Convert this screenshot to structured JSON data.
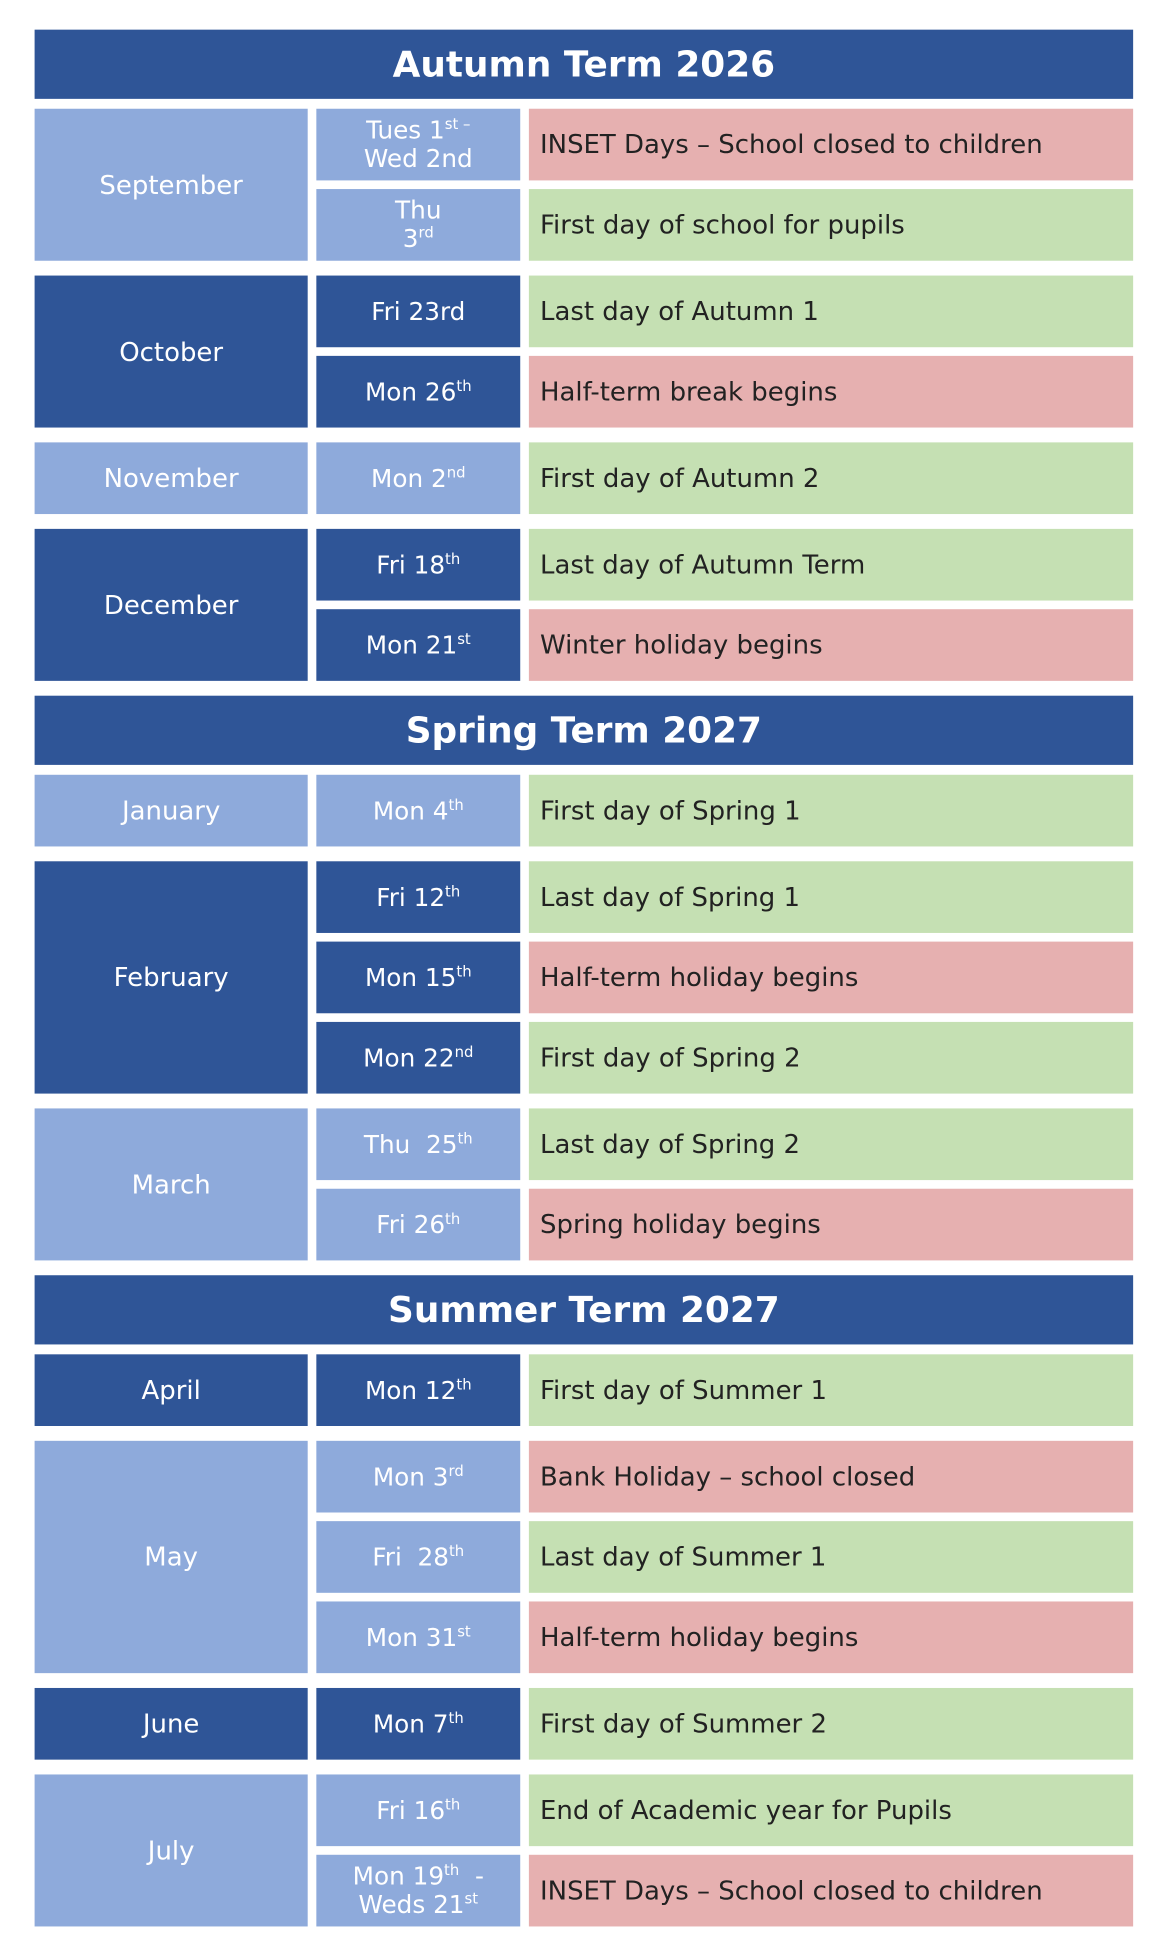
{
  "terms": [
    {
      "title": "Autumn Term 2026",
      "months": [
        {
          "name": "September",
          "color": "#8eaadb",
          "events": [
            {
              "date": [
                [
                  "Tues 1",
                  "st –"
                ],
                [
                  "Wed 2nd"
                ]
              ],
              "color": "#8eaadb",
              "text": "INSET Days – School closed to children",
              "fill": "#e6b0b0"
            },
            {
              "date": [
                [
                  "Thu"
                ],
                [
                  "3",
                  "rd"
                ]
              ],
              "color": "#8eaadb",
              "text": "First day of school for pupils",
              "fill": "#c5e0b3"
            }
          ]
        },
        {
          "name": "October",
          "color": "#2f5597",
          "events": [
            {
              "date": [
                [
                  "Fri 23rd"
                ]
              ],
              "color": "#2f5597",
              "text": "Last day of Autumn 1",
              "fill": "#c5e0b3"
            },
            {
              "date": [
                [
                  "Mon 26",
                  "th"
                ]
              ],
              "color": "#2f5597",
              "text": "Half-term break begins",
              "fill": "#e6b0b0"
            }
          ]
        },
        {
          "name": "November",
          "color": "#8eaadb",
          "events": [
            {
              "date": [
                [
                  "Mon 2",
                  "nd"
                ]
              ],
              "color": "#8eaadb",
              "text": "First day of Autumn 2",
              "fill": "#c5e0b3"
            }
          ]
        },
        {
          "name": "December",
          "color": "#2f5597",
          "events": [
            {
              "date": [
                [
                  "Fri 18",
                  "th"
                ]
              ],
              "color": "#2f5597",
              "text": "Last day of Autumn Term",
              "fill": "#c5e0b3"
            },
            {
              "date": [
                [
                  "Mon 21",
                  "st"
                ]
              ],
              "color": "#2f5597",
              "text": "Winter holiday begins",
              "fill": "#e6b0b0"
            }
          ]
        }
      ]
    },
    {
      "title": "Spring Term 2027",
      "months": [
        {
          "name": "January",
          "color": "#8eaadb",
          "events": [
            {
              "date": [
                [
                  "Mon 4",
                  "th"
                ]
              ],
              "color": "#8eaadb",
              "text": "First day of Spring 1",
              "fill": "#c5e0b3"
            }
          ]
        },
        {
          "name": "February",
          "color": "#2f5597",
          "events": [
            {
              "date": [
                [
                  "Fri 12",
                  "th"
                ]
              ],
              "color": "#2f5597",
              "text": "Last day of Spring 1",
              "fill": "#c5e0b3"
            },
            {
              "date": [
                [
                  "Mon 15",
                  "th"
                ]
              ],
              "color": "#2f5597",
              "text": "Half-term holiday begins",
              "fill": "#e6b0b0"
            },
            {
              "date": [
                [
                  "Mon 22",
                  "nd"
                ]
              ],
              "color": "#2f5597",
              "text": "First day of Spring 2",
              "fill": "#c5e0b3"
            }
          ]
        },
        {
          "name": "March",
          "color": "#8eaadb",
          "events": [
            {
              "date": [
                [
                  "Thu  25",
                  "th"
                ]
              ],
              "color": "#8eaadb",
              "text": "Last day of Spring 2",
              "fill": "#c5e0b3"
            },
            {
              "date": [
                [
                  "Fri 26",
                  "th"
                ]
              ],
              "color": "#8eaadb",
              "text": "Spring holiday begins",
              "fill": "#e6b0b0"
            }
          ]
        }
      ]
    },
    {
      "title": "Summer Term 2027",
      "months": [
        {
          "name": "April",
          "color": "#2f5597",
          "events": [
            {
              "date": [
                [
                  "Mon 12",
                  "th"
                ]
              ],
              "color": "#2f5597",
              "text": "First day of Summer 1",
              "fill": "#c5e0b3"
            }
          ]
        },
        {
          "name": "May",
          "color": "#8eaadb",
          "events": [
            {
              "date": [
                [
                  "Mon 3",
                  "rd"
                ]
              ],
              "color": "#8eaadb",
              "text": "Bank Holiday – school closed",
              "fill": "#e6b0b0"
            },
            {
              "date": [
                [
                  "Fri  28",
                  "th"
                ]
              ],
              "color": "#8eaadb",
              "text": "Last day of Summer 1",
              "fill": "#c5e0b3"
            },
            {
              "date": [
                [
                  "Mon 31",
                  "st"
                ]
              ],
              "color": "#8eaadb",
              "text": "Half-term holiday begins",
              "fill": "#e6b0b0"
            }
          ]
        },
        {
          "name": "June",
          "color": "#2f5597",
          "events": [
            {
              "date": [
                [
                  "Mon 7",
                  "th"
                ]
              ],
              "color": "#2f5597",
              "text": "First day of Summer 2",
              "fill": "#c5e0b3"
            }
          ]
        },
        {
          "name": "July",
          "color": "#8eaadb",
          "events": [
            {
              "date": [
                [
                  "Fri 16",
                  "th"
                ]
              ],
              "color": "#8eaadb",
              "text": "End of Academic year for Pupils",
              "fill": "#c5e0b3"
            },
            {
              "date": [
                [
                  "Mon 19",
                  "th",
                  "  -"
                ],
                [
                  "Weds 21",
                  "st"
                ]
              ],
              "color": "#8eaadb",
              "text": "INSET Days – School closed to children",
              "fill": "#e6b0b0"
            }
          ]
        }
      ]
    }
  ]
}
